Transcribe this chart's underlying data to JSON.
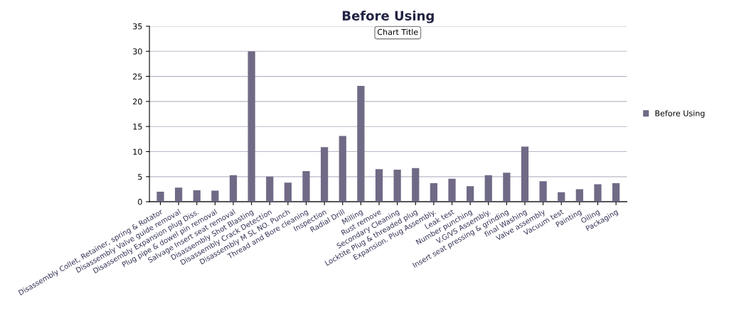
{
  "chart_data": {
    "type": "bar",
    "title": "Before Using",
    "categories": [
      "Disassembly Collet, Retainer, spring & Rotator",
      "Disassembly Valve guide removal",
      "Disassembly Expansion plug Diss.",
      "Plug pipe & dowel pin removal",
      "Salvage Insert seat removal",
      "Disassembly Shot Blasting",
      "Disassembly Crack Detection",
      "Disassembly M SL NO. Punch",
      "Thread and Bore cleaning",
      "Inspection",
      "Radial Drill",
      "Milling",
      "Rust remove",
      "Secondary Cleaning",
      "Locktite Plug & threaded plug",
      "Expansion. Plug Assembly.",
      "Leak test",
      "Number punching",
      "V.G/VS Assembly.",
      "Insert seat pressing & grinding",
      "final Washing",
      "Valve assembly",
      "Vacuum test",
      "Painting",
      "Oiling",
      "Packaging"
    ],
    "series": [
      {
        "name": "Before Using",
        "color": "#716a86",
        "values": [
          2,
          2.8,
          2.3,
          2.2,
          5.3,
          30,
          5,
          3.8,
          6.1,
          10.9,
          13.1,
          23.1,
          6.5,
          6.4,
          6.7,
          3.7,
          4.6,
          3.1,
          5.3,
          5.8,
          11,
          4.1,
          1.9,
          2.5,
          3.5,
          3.7
        ]
      }
    ],
    "ylim": [
      0,
      35
    ],
    "yticks": [
      0,
      5,
      10,
      15,
      20,
      25,
      30,
      35
    ],
    "grid": "y",
    "legend": "right",
    "annotations": [
      "Chart Title"
    ]
  }
}
